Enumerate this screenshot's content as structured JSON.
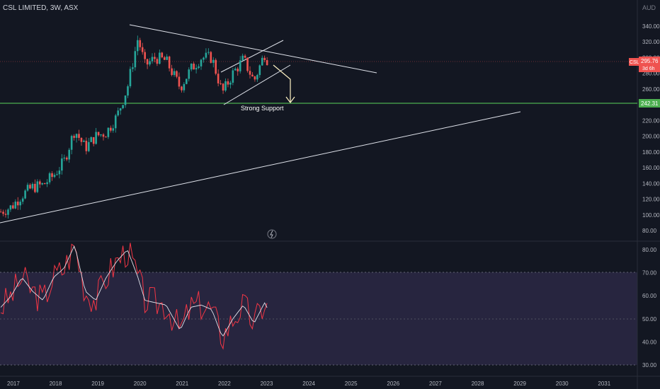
{
  "header": {
    "title": "CSL LIMITED, 3W, ASX",
    "currency": "AUD"
  },
  "price_axis": {
    "ticks": [
      "340.00",
      "320.00",
      "300.00",
      "280.00",
      "260.00",
      "240.00",
      "220.00",
      "200.00",
      "180.00",
      "160.00",
      "140.00",
      "120.00",
      "100.00",
      "80.00"
    ]
  },
  "rsi_axis": {
    "ticks": [
      "80.00",
      "70.00",
      "60.00",
      "50.00",
      "40.00",
      "30.00"
    ]
  },
  "time_axis": {
    "ticks": [
      "2017",
      "2018",
      "2019",
      "2020",
      "2021",
      "2022",
      "2023",
      "2024",
      "2025",
      "2026",
      "2027",
      "2028",
      "2029",
      "2030",
      "2031"
    ]
  },
  "labels": {
    "symbol": "CSL",
    "last_price": "295.76",
    "countdown": "3d 6h",
    "support_price": "242.31",
    "support_text": "Strong Support"
  },
  "colors": {
    "up": "#26a69a",
    "down": "#ef5350",
    "support": "#4caf50",
    "lines": "#e0e3eb",
    "arrow": "#fff3c4",
    "rsi": "#f23645",
    "rsi_ma": "#e0e3eb",
    "band": "#2a2742"
  },
  "chart_data": {
    "type": "candlestick",
    "symbol": "CSL LIMITED",
    "interval": "3W",
    "exchange": "ASX",
    "x_range": [
      "2016-10",
      "2031-12"
    ],
    "y_range": [
      75,
      352
    ],
    "price": [
      {
        "date": "2016-10",
        "close": 104
      },
      {
        "date": "2017-01",
        "close": 110
      },
      {
        "date": "2017-04",
        "close": 125
      },
      {
        "date": "2017-07",
        "close": 135
      },
      {
        "date": "2017-10",
        "close": 138
      },
      {
        "date": "2018-01",
        "close": 150
      },
      {
        "date": "2018-04",
        "close": 168
      },
      {
        "date": "2018-07",
        "close": 208
      },
      {
        "date": "2018-10",
        "close": 185
      },
      {
        "date": "2019-01",
        "close": 200
      },
      {
        "date": "2019-04",
        "close": 205
      },
      {
        "date": "2019-07",
        "close": 225
      },
      {
        "date": "2019-10",
        "close": 262
      },
      {
        "date": "2020-01",
        "close": 325
      },
      {
        "date": "2020-03",
        "close": 290
      },
      {
        "date": "2020-06",
        "close": 300
      },
      {
        "date": "2020-09",
        "close": 296
      },
      {
        "date": "2021-01",
        "close": 262
      },
      {
        "date": "2021-04",
        "close": 285
      },
      {
        "date": "2021-07",
        "close": 300
      },
      {
        "date": "2021-10",
        "close": 300
      },
      {
        "date": "2022-01",
        "close": 255
      },
      {
        "date": "2022-04",
        "close": 280
      },
      {
        "date": "2022-07",
        "close": 298
      },
      {
        "date": "2022-10",
        "close": 270
      },
      {
        "date": "2023-01",
        "close": 305
      },
      {
        "date": "2023-02",
        "close": 295.76
      }
    ],
    "support_level": 242.31,
    "support_label": "Strong Support",
    "rsi": {
      "y_range": [
        27,
        84
      ],
      "band": [
        30,
        70
      ],
      "values": [
        {
          "date": "2016-10",
          "v": 55
        },
        {
          "date": "2017-01",
          "v": 60
        },
        {
          "date": "2017-04",
          "v": 68
        },
        {
          "date": "2017-07",
          "v": 62
        },
        {
          "date": "2017-10",
          "v": 58
        },
        {
          "date": "2018-01",
          "v": 68
        },
        {
          "date": "2018-04",
          "v": 72
        },
        {
          "date": "2018-07",
          "v": 82
        },
        {
          "date": "2018-10",
          "v": 62
        },
        {
          "date": "2019-01",
          "v": 58
        },
        {
          "date": "2019-04",
          "v": 68
        },
        {
          "date": "2019-07",
          "v": 75
        },
        {
          "date": "2019-10",
          "v": 80
        },
        {
          "date": "2020-01",
          "v": 68
        },
        {
          "date": "2020-03",
          "v": 58
        },
        {
          "date": "2020-06",
          "v": 57
        },
        {
          "date": "2020-09",
          "v": 56
        },
        {
          "date": "2021-01",
          "v": 45
        },
        {
          "date": "2021-04",
          "v": 55
        },
        {
          "date": "2021-07",
          "v": 56
        },
        {
          "date": "2021-10",
          "v": 54
        },
        {
          "date": "2022-01",
          "v": 42
        },
        {
          "date": "2022-04",
          "v": 50
        },
        {
          "date": "2022-07",
          "v": 56
        },
        {
          "date": "2022-10",
          "v": 48
        },
        {
          "date": "2023-01",
          "v": 57
        },
        {
          "date": "2023-02",
          "v": 54
        }
      ]
    }
  }
}
